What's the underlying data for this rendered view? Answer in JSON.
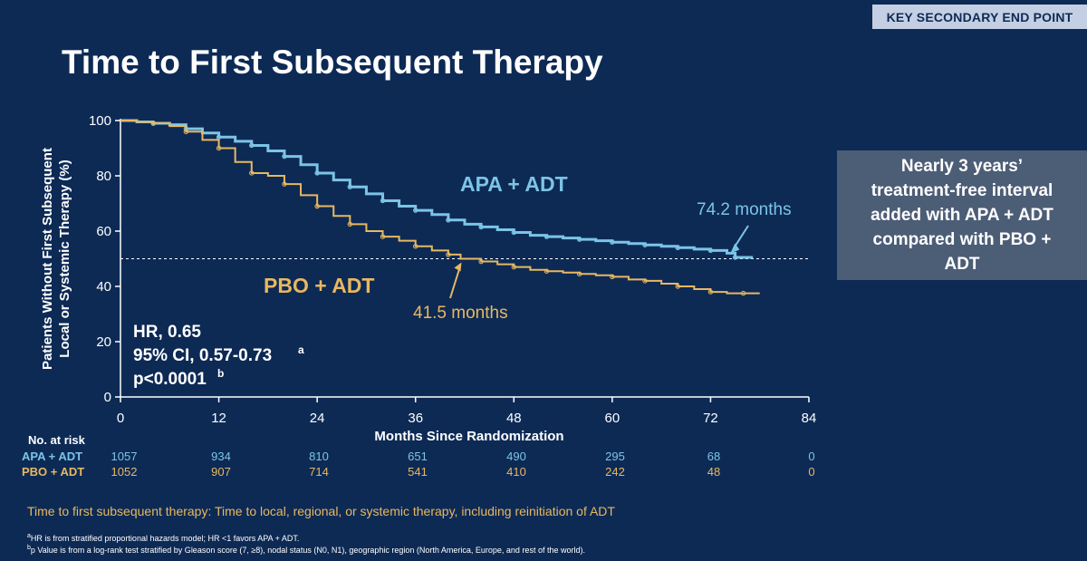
{
  "header": {
    "tag_label": "KEY SECONDARY END POINT",
    "title": "Time to First Subsequent Therapy"
  },
  "callout": {
    "text": "Nearly 3 years’ treatment-free interval added with APA + ADT compared with PBO + ADT"
  },
  "chart_data": {
    "type": "line",
    "title": "Time to First Subsequent Therapy",
    "xlabel": "Months Since Randomization",
    "ylabel_line1": "Patients Without First Subsequent",
    "ylabel_line2": "Local or Systemic Therapy (%)",
    "xlim": [
      0,
      84
    ],
    "ylim": [
      0,
      100
    ],
    "xticks": [
      0,
      12,
      24,
      36,
      48,
      60,
      72,
      84
    ],
    "yticks": [
      0,
      20,
      40,
      60,
      80,
      100
    ],
    "reference_line": {
      "y": 50,
      "style": "dashed"
    },
    "series": [
      {
        "name": "APA + ADT",
        "color": "#7cc4e6",
        "x": [
          0,
          2,
          4,
          6,
          8,
          10,
          12,
          14,
          16,
          18,
          20,
          22,
          24,
          26,
          28,
          30,
          32,
          34,
          36,
          38,
          40,
          42,
          44,
          46,
          48,
          50,
          52,
          54,
          56,
          58,
          60,
          62,
          64,
          66,
          68,
          70,
          72,
          74,
          75,
          77
        ],
        "y": [
          100,
          99.5,
          99,
          98.5,
          97,
          95.5,
          94,
          92.5,
          91,
          89,
          87,
          84,
          81,
          78.5,
          76,
          73.5,
          71,
          69,
          67.5,
          66,
          64,
          62.5,
          61.5,
          60.5,
          59.5,
          58.5,
          58,
          57.5,
          57,
          56.5,
          56,
          55.5,
          55,
          54.5,
          54,
          53.5,
          53,
          52,
          50.5,
          50
        ]
      },
      {
        "name": "PBO + ADT",
        "color": "#e8b861",
        "x": [
          0,
          2,
          4,
          6,
          8,
          10,
          12,
          14,
          16,
          18,
          20,
          22,
          24,
          26,
          28,
          30,
          32,
          34,
          36,
          38,
          40,
          41.5,
          44,
          46,
          48,
          50,
          52,
          54,
          56,
          58,
          60,
          62,
          64,
          66,
          68,
          70,
          72,
          74,
          76,
          78
        ],
        "y": [
          100,
          99.5,
          99,
          98,
          96,
          93,
          90,
          85,
          81,
          80,
          77,
          73,
          69,
          65.5,
          62.5,
          60,
          58,
          56.5,
          54.5,
          53,
          51.5,
          50,
          49,
          48,
          47,
          46,
          45.5,
          45,
          44.5,
          44,
          43.5,
          42.5,
          42,
          41,
          40,
          39,
          38,
          37.5,
          37.5,
          37.5
        ]
      }
    ],
    "labels": [
      {
        "text": "APA + ADT",
        "series": "APA + ADT"
      },
      {
        "text": "PBO + ADT",
        "series": "PBO + ADT"
      }
    ],
    "annotations": [
      {
        "text": "74.2 months",
        "x": 74.2,
        "y": 50,
        "series": "APA + ADT"
      },
      {
        "text": "41.5 months",
        "x": 41.5,
        "y": 50,
        "series": "PBO + ADT"
      }
    ],
    "stats": {
      "hr": "HR, 0.65",
      "ci": "95% CI, 0.57-0.73",
      "ci_sup": "a",
      "p": "p<0.0001",
      "p_sup": "b"
    }
  },
  "risk_table": {
    "title": "No. at risk",
    "rows": [
      {
        "label": "APA + ADT",
        "values": [
          "1057",
          "934",
          "810",
          "651",
          "490",
          "295",
          "68",
          "0"
        ]
      },
      {
        "label": "PBO + ADT",
        "values": [
          "1052",
          "907",
          "714",
          "541",
          "410",
          "242",
          "48",
          "0"
        ]
      }
    ]
  },
  "definition": "Time to first subsequent therapy: Time to local, regional, or systemic therapy, including reinitiation of ADT",
  "footnotes": [
    {
      "sup": "a",
      "text": "HR is from stratified proportional hazards model; HR <1 favors APA + ADT."
    },
    {
      "sup": "b",
      "text": "p Value is from a log-rank test stratified by Gleason score (7, ≥8), nodal status (N0, N1), geographic region (North America, Europe, and rest of the world)."
    }
  ]
}
